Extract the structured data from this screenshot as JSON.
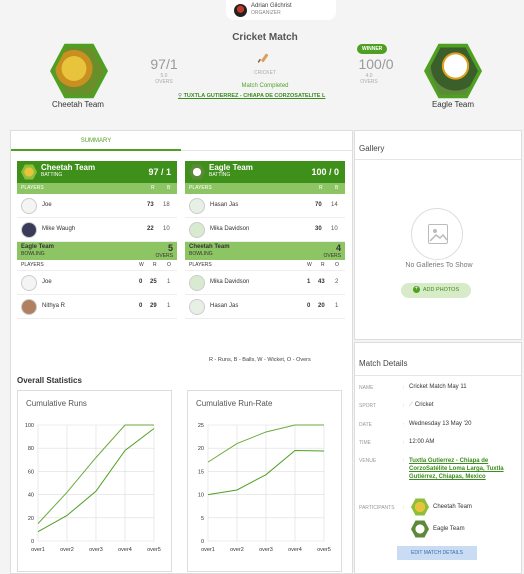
{
  "organizer": {
    "name": "Adrian Gilchrist",
    "role": "ORGANIZER"
  },
  "match": {
    "title": "Cricket Match",
    "sport_label": "CRICKET",
    "status": "Match Completed",
    "venue": "TUXTLA GUTIERREZ - CHIAPA DE CORZOSATÉLITE L",
    "winner_label": "WINNER"
  },
  "team_a": {
    "name": "Cheetah Team",
    "score": "97/1",
    "overs": "5.0",
    "overs_label": "OVERS"
  },
  "team_b": {
    "name": "Eagle Team",
    "score": "100/0",
    "overs": "4.0",
    "overs_label": "OVERS"
  },
  "tabs": {
    "summary": "SUMMARY"
  },
  "innings": [
    {
      "team": "Cheetah Team",
      "status": "BATTING",
      "score": "97 / 1",
      "players_label": "PLAYERS",
      "cols": [
        "R",
        "B"
      ],
      "batters": [
        {
          "name": "Joe",
          "r": "73",
          "b": "18"
        },
        {
          "name": "Mike Waugh",
          "r": "22",
          "b": "10"
        }
      ],
      "bowl_team": "Eagle Team",
      "bowl_status": "BOWLING",
      "bowl_score": "5",
      "bowl_overs": "OVERS",
      "bowl_cols": [
        "W",
        "R",
        "O"
      ],
      "bowlers": [
        {
          "name": "Joe",
          "w": "0",
          "r": "25",
          "o": "1"
        },
        {
          "name": "Nithya R",
          "w": "0",
          "r": "29",
          "o": "1"
        }
      ]
    },
    {
      "team": "Eagle Team",
      "status": "BATTING",
      "score": "100 / 0",
      "players_label": "PLAYERS",
      "cols": [
        "R",
        "B"
      ],
      "batters": [
        {
          "name": "Hasan Jas",
          "r": "70",
          "b": "14"
        },
        {
          "name": "Mika Davidson",
          "r": "30",
          "b": "10"
        }
      ],
      "bowl_team": "Cheetah Team",
      "bowl_status": "BOWLING",
      "bowl_score": "4",
      "bowl_overs": "OVERS",
      "bowl_cols": [
        "W",
        "R",
        "O"
      ],
      "bowlers": [
        {
          "name": "Mika Davidson",
          "w": "1",
          "r": "43",
          "o": "2"
        },
        {
          "name": "Hasan Jas",
          "w": "0",
          "r": "20",
          "o": "1"
        }
      ]
    }
  ],
  "legend": "R - Runs, B - Balls, W - Wicket, O - Overs",
  "overall_title": "Overall Statistics",
  "chart_data": [
    {
      "type": "line",
      "title": "Cumulative Runs",
      "categories": [
        "over1",
        "over2",
        "over3",
        "over4",
        "over5"
      ],
      "ylim": [
        0,
        100
      ],
      "yticks": [
        0,
        20,
        40,
        60,
        80,
        100
      ],
      "series": [
        {
          "values": [
            15,
            42,
            72,
            100,
            100
          ]
        },
        {
          "values": [
            8,
            22,
            43,
            78,
            97
          ]
        }
      ],
      "grid": true
    },
    {
      "type": "line",
      "title": "Cumulative Run-Rate",
      "categories": [
        "over1",
        "over2",
        "over3",
        "over4",
        "over5"
      ],
      "ylim": [
        0,
        25
      ],
      "yticks": [
        0,
        5,
        10,
        15,
        20,
        25
      ],
      "series": [
        {
          "values": [
            17,
            21,
            23.5,
            25,
            25
          ]
        },
        {
          "values": [
            10,
            11,
            14.3,
            19.5,
            19.4
          ]
        }
      ],
      "grid": true
    }
  ],
  "gallery": {
    "title": "Gallery",
    "empty": "No Galleries To Show",
    "add": "ADD PHOTOS",
    "add_icon": "+"
  },
  "details": {
    "title": "Match Details",
    "name_label": "NAME",
    "name": "Cricket Match May 11",
    "sport_label": "SPORT",
    "sport": "Cricket",
    "date_label": "DATE",
    "date": "Wednesday 13 May '20",
    "time_label": "TIME",
    "time": "12:00 AM",
    "venue_label": "VENUE",
    "venue": "Tuxtla Gutierrez - Chiapa de CorzoSatélite Loma Larga, Tuxtla Gutiérrez, Chiapas, Mexico",
    "participants_label": "PARTICIPANTS",
    "participants": [
      "Cheetah Team",
      "Eagle Team"
    ],
    "edit": "EDIT MATCH DETAILS",
    "colon": ":"
  },
  "colors": {
    "accent": "#4f9f22",
    "accent_light": "#8ec564",
    "link": "#3b8c1e"
  }
}
